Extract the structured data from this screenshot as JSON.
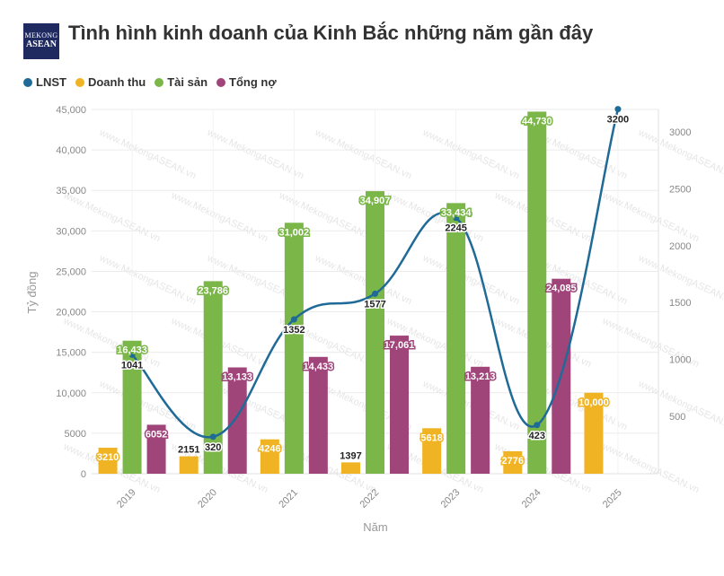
{
  "header": {
    "title": "Tình hình kinh doanh của Kinh Bắc những năm gần đây",
    "logo_line1": "MEKONG",
    "logo_line2": "ASEAN",
    "watermark": "www.MekongASEAN.vn"
  },
  "colors": {
    "lnst": "#1f6a96",
    "doanh_thu": "#f0b323",
    "tai_san": "#7ab648",
    "tong_no": "#a0457a"
  },
  "chart_data": {
    "type": "bar",
    "categories": [
      "2019",
      "2020",
      "2021",
      "2022",
      "2023",
      "2024",
      "2025"
    ],
    "xlabel": "Năm",
    "ylabel": "Tỷ đồng",
    "ylim": [
      0,
      45000
    ],
    "y2lim": [
      0,
      3200
    ],
    "y_ticks": [
      "0",
      "5000",
      "10,000",
      "15,000",
      "20,000",
      "25,000",
      "30,000",
      "35,000",
      "40,000",
      "45,000"
    ],
    "y_tick_values": [
      0,
      5000,
      10000,
      15000,
      20000,
      25000,
      30000,
      35000,
      40000,
      45000
    ],
    "y2_ticks": [
      "500",
      "1000",
      "1500",
      "2000",
      "2500",
      "3000"
    ],
    "y2_tick_values": [
      500,
      1000,
      1500,
      2000,
      2500,
      3000
    ],
    "legend_position": "top-left",
    "series": [
      {
        "name": "LNST",
        "type": "line",
        "axis": "right",
        "values": [
          1041,
          320,
          1352,
          1577,
          2245,
          423,
          3200
        ],
        "labels": [
          "1041",
          "320",
          "1352",
          "1577",
          "2245",
          "423",
          "3200"
        ]
      },
      {
        "name": "Doanh thu",
        "type": "bar",
        "axis": "left",
        "values": [
          3210,
          2151,
          4246,
          1397,
          5618,
          2776,
          10000
        ],
        "labels": [
          "3210",
          "2151",
          "4246",
          "1397",
          "5618",
          "2776",
          "10,000"
        ]
      },
      {
        "name": "Tài sản",
        "type": "bar",
        "axis": "left",
        "values": [
          16433,
          23786,
          31002,
          34907,
          33434,
          44730,
          null
        ],
        "labels": [
          "16,433",
          "23,786",
          "31,002",
          "34,907",
          "33,434",
          "44,730",
          ""
        ]
      },
      {
        "name": "Tổng nợ",
        "type": "bar",
        "axis": "left",
        "values": [
          6052,
          13133,
          14433,
          17061,
          13213,
          24085,
          null
        ],
        "labels": [
          "6052",
          "13,133",
          "14,433",
          "17,061",
          "13,213",
          "24,085",
          ""
        ]
      }
    ]
  }
}
